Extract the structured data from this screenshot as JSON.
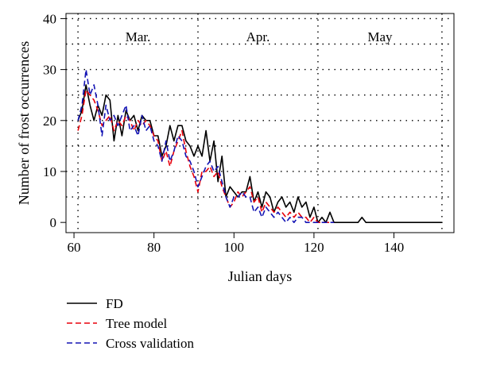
{
  "chart_data": {
    "type": "line",
    "xlabel": "Julian days",
    "ylabel": "Number of frost occurrences",
    "xlim": [
      58,
      155
    ],
    "ylim": [
      -2,
      41
    ],
    "xticks": [
      60,
      80,
      100,
      120,
      140
    ],
    "yticks": [
      0,
      10,
      20,
      30,
      40
    ],
    "xtick_labels": [
      "60",
      "80",
      "100",
      "120",
      "140"
    ],
    "ytick_labels": [
      "0",
      "10",
      "20",
      "30",
      "40"
    ],
    "grid": true,
    "grid_x": [
      61,
      91,
      121,
      152
    ],
    "grid_y": [
      5,
      10,
      15,
      20,
      25,
      30,
      35,
      40
    ],
    "month_labels": [
      {
        "text": "Mar.",
        "x": 76
      },
      {
        "text": "Apr.",
        "x": 106
      },
      {
        "text": "May",
        "x": 136.5
      }
    ],
    "legend_position": "bottom-left",
    "series": [
      {
        "name": "FD",
        "color": "#000000",
        "style": "solid",
        "x": [
          61,
          62,
          63,
          64,
          65,
          66,
          67,
          68,
          69,
          70,
          71,
          72,
          73,
          74,
          75,
          76,
          77,
          78,
          79,
          80,
          81,
          82,
          83,
          84,
          85,
          86,
          87,
          88,
          89,
          90,
          91,
          92,
          93,
          94,
          95,
          96,
          97,
          98,
          99,
          100,
          101,
          102,
          103,
          104,
          105,
          106,
          107,
          108,
          109,
          110,
          111,
          112,
          113,
          114,
          115,
          116,
          117,
          118,
          119,
          120,
          121,
          122,
          123,
          124,
          125,
          126,
          127,
          128,
          129,
          130,
          131,
          132,
          133,
          134,
          135,
          136,
          137,
          138,
          139,
          140,
          141,
          142,
          143,
          144,
          145,
          146,
          147,
          148,
          149,
          150,
          151,
          152
        ],
        "y": [
          20,
          22,
          27,
          23,
          20,
          23,
          21,
          25,
          24,
          16,
          21,
          17,
          22,
          20,
          21,
          18,
          21,
          20,
          20,
          17,
          17,
          13,
          15,
          19,
          16,
          19,
          19,
          16,
          15,
          13,
          15,
          13,
          18,
          12,
          16,
          8,
          13,
          5,
          7,
          6,
          5,
          6,
          6,
          9,
          4,
          6,
          3,
          6,
          5,
          2,
          4,
          5,
          3,
          4,
          2,
          5,
          3,
          4,
          1,
          3,
          0,
          1,
          0,
          2,
          0,
          0,
          0,
          0,
          0,
          0,
          0,
          1,
          0,
          0,
          0,
          0,
          0,
          0,
          0,
          0,
          0,
          0,
          0,
          0,
          0,
          0,
          0,
          0,
          0,
          0,
          0,
          0
        ]
      },
      {
        "name": "Tree model",
        "color": "#e8000b",
        "style": "dashed",
        "x": [
          61,
          62,
          63,
          64,
          65,
          66,
          67,
          68,
          69,
          70,
          71,
          72,
          73,
          74,
          75,
          76,
          77,
          78,
          79,
          80,
          81,
          82,
          83,
          84,
          85,
          86,
          87,
          88,
          89,
          90,
          91,
          92,
          93,
          94,
          95,
          96,
          97,
          98,
          99,
          100,
          101,
          102,
          103,
          104,
          105,
          106,
          107,
          108,
          109,
          110,
          111,
          112,
          113,
          114,
          115,
          116,
          117,
          118,
          119,
          120,
          121,
          122,
          123,
          124,
          125
        ],
        "y": [
          18,
          21,
          26,
          25,
          24,
          22,
          19,
          20,
          21,
          18,
          20,
          19,
          21,
          20,
          18,
          20,
          19,
          20,
          19,
          17,
          16,
          12,
          14,
          11,
          14,
          16,
          18,
          14,
          11,
          9,
          6,
          10,
          10,
          11,
          9,
          10,
          7,
          5,
          3,
          4,
          6,
          5,
          6,
          7,
          4,
          5,
          2,
          4,
          3,
          2,
          3,
          2,
          1,
          2,
          1,
          2,
          1,
          1,
          0,
          1,
          0,
          0,
          0,
          0,
          0
        ]
      },
      {
        "name": "Cross validation",
        "color": "#1414b4",
        "style": "dashed",
        "x": [
          61,
          62,
          63,
          64,
          65,
          66,
          67,
          68,
          69,
          70,
          71,
          72,
          73,
          74,
          75,
          76,
          77,
          78,
          79,
          80,
          81,
          82,
          83,
          84,
          85,
          86,
          87,
          88,
          89,
          90,
          91,
          92,
          93,
          94,
          95,
          96,
          97,
          98,
          99,
          100,
          101,
          102,
          103,
          104,
          105,
          106,
          107,
          108,
          109,
          110,
          111,
          112,
          113,
          114,
          115,
          116,
          117,
          118,
          119,
          120,
          121,
          122,
          123,
          124,
          125
        ],
        "y": [
          20,
          23,
          30,
          25,
          27,
          23,
          17,
          23,
          20,
          21,
          19,
          21,
          23,
          18,
          19,
          17,
          21,
          18,
          19,
          16,
          15,
          12,
          16,
          12,
          14,
          17,
          16,
          13,
          12,
          10,
          7,
          9,
          11,
          12,
          10,
          11,
          8,
          5,
          3,
          5,
          5,
          6,
          5,
          5,
          2,
          3,
          1,
          3,
          2,
          1,
          2,
          1,
          0,
          1,
          0,
          1,
          1,
          0,
          0,
          0,
          0,
          0,
          0,
          0,
          0
        ]
      }
    ]
  }
}
